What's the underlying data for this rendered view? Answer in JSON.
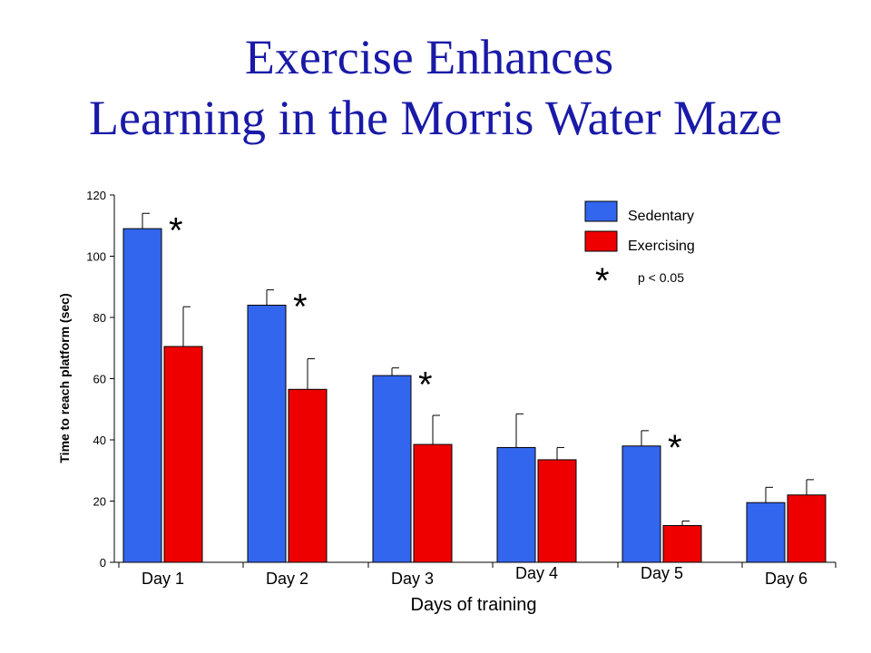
{
  "slide": {
    "title_line1": "Exercise Enhances",
    "title_line2": "Learning in the Morris Water Maze"
  },
  "colors": {
    "title": "#1a1aa8",
    "sedentary": "#3366ee",
    "exercising": "#ee0000"
  },
  "chart_data": {
    "type": "bar",
    "title": "",
    "xlabel": "Days of training",
    "ylabel": "Time to reach platform (sec)",
    "ylim": [
      0,
      120
    ],
    "yticks": [
      0,
      20,
      40,
      60,
      80,
      100,
      120
    ],
    "categories": [
      "Day 1",
      "Day 2",
      "Day 3",
      "Day 4",
      "Day 5",
      "Day 6"
    ],
    "series": [
      {
        "name": "Sedentary",
        "color": "#3366ee",
        "values": [
          109,
          84,
          61,
          37.5,
          38,
          19.5
        ],
        "error": [
          5,
          5,
          2.5,
          11,
          5,
          5
        ]
      },
      {
        "name": "Exercising",
        "color": "#ee0000",
        "values": [
          70.5,
          56.5,
          38.5,
          33.5,
          12,
          22
        ],
        "error": [
          13,
          10,
          9.5,
          4,
          1.5,
          5
        ]
      }
    ],
    "significant": [
      true,
      true,
      true,
      false,
      true,
      false
    ],
    "legend": {
      "position": "top-right",
      "significance_symbol": "*",
      "significance_text": "p < 0.05"
    },
    "grid": false
  }
}
